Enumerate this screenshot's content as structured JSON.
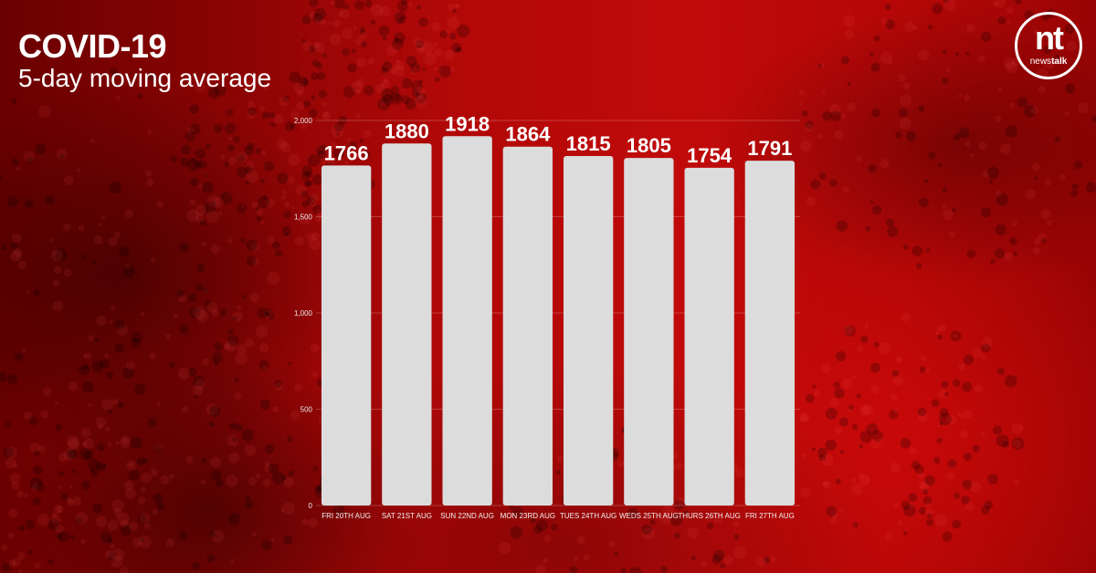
{
  "header": {
    "title": "COVID-19",
    "subtitle": "5-day moving average"
  },
  "logo": {
    "mark": "nt",
    "word_light": "news",
    "word_bold": "talk",
    "color": "#ffffff"
  },
  "colors": {
    "bar": "#dcdcdc",
    "background_accent": "#c00a0a"
  },
  "chart_data": {
    "type": "bar",
    "categories": [
      "FRI 20TH AUG",
      "SAT 21ST AUG",
      "SUN 22ND AUG",
      "MON 23RD AUG",
      "TUES 24TH AUG",
      "WEDS 25TH AUG",
      "THURS 26TH AUG",
      "FRI 27TH AUG"
    ],
    "values": [
      1766,
      1880,
      1918,
      1864,
      1815,
      1805,
      1754,
      1791
    ],
    "data_labels": [
      "1766",
      "1880",
      "1918",
      "1864",
      "1815",
      "1805",
      "1754",
      "1791"
    ],
    "ylim": [
      0,
      2000
    ],
    "yticks": [
      0,
      500,
      1000,
      1500,
      2000
    ],
    "ytick_labels": [
      "0",
      "500",
      "1,000",
      "1,500",
      "2,000"
    ],
    "grid": true,
    "legend": "none"
  }
}
